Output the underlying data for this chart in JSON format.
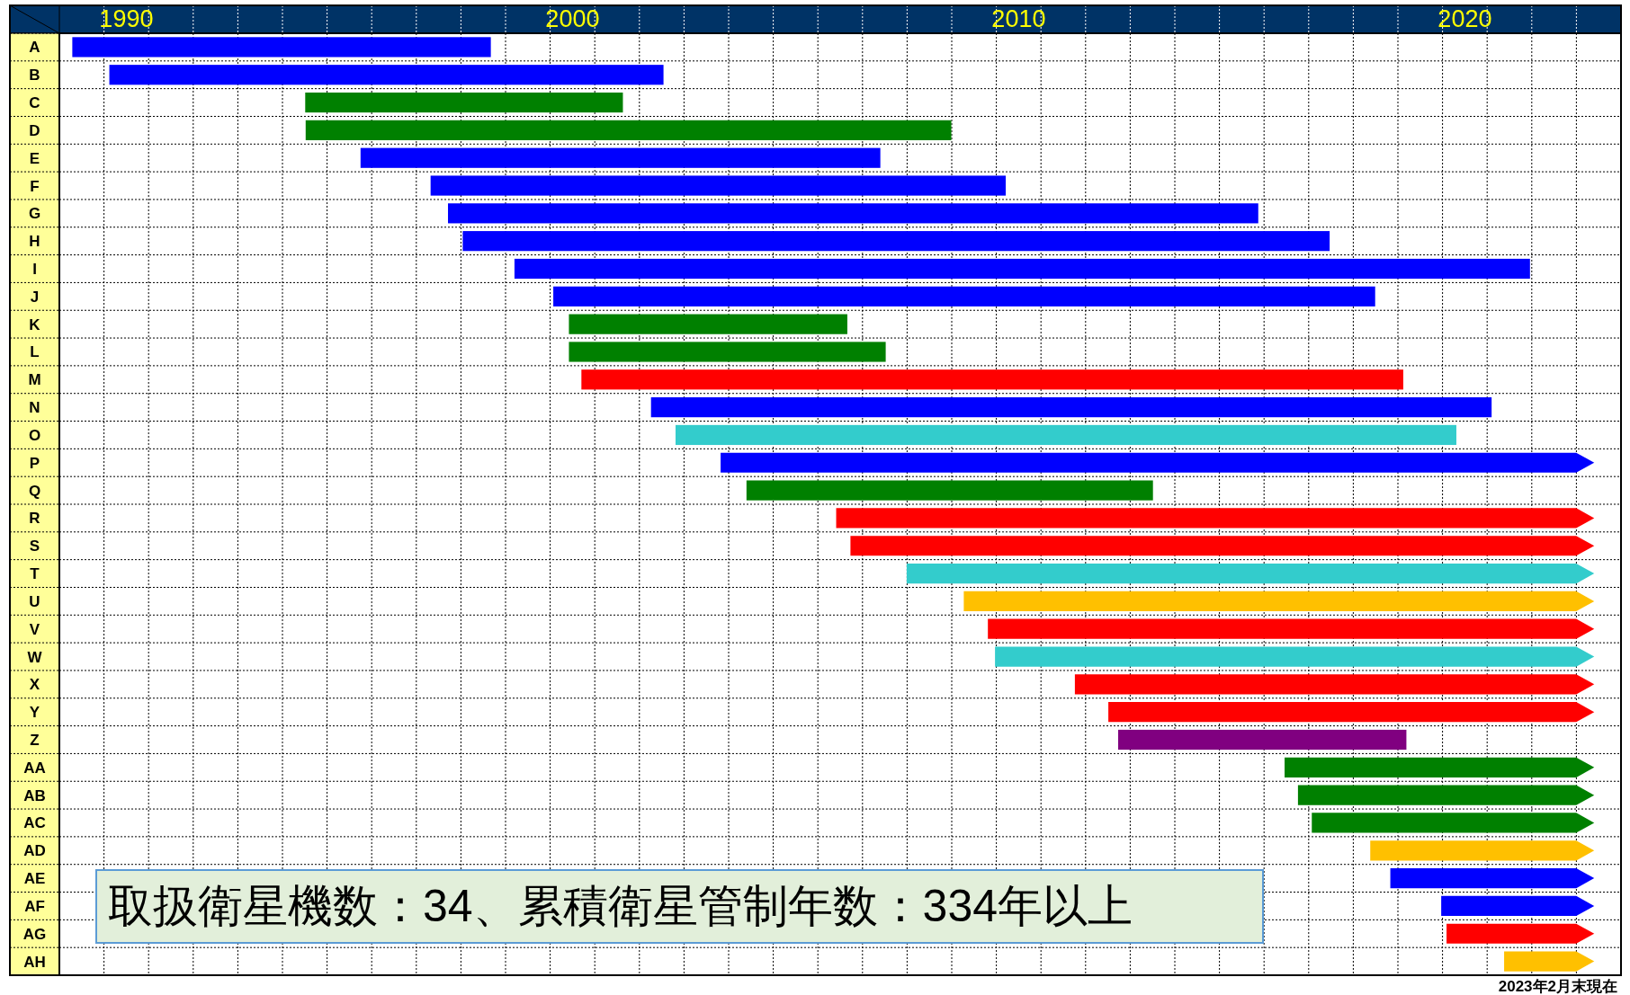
{
  "chart_data": {
    "type": "bar",
    "orientation": "horizontal",
    "grid": true,
    "categories": [
      "A",
      "B",
      "C",
      "D",
      "E",
      "F",
      "G",
      "H",
      "I",
      "J",
      "K",
      "L",
      "M",
      "N",
      "O",
      "P",
      "Q",
      "R",
      "S",
      "T",
      "U",
      "V",
      "W",
      "X",
      "Y",
      "Z",
      "AA",
      "AB",
      "AC",
      "AD",
      "AE",
      "AF",
      "AG",
      "AH"
    ],
    "base": [
      1989.29,
      1990.12,
      1994.51,
      1994.52,
      1995.75,
      1997.32,
      1997.71,
      1998.04,
      1999.2,
      2000.07,
      2000.42,
      2000.42,
      2000.7,
      2002.26,
      2002.81,
      2003.82,
      2004.4,
      2006.41,
      2006.73,
      2007.99,
      2009.27,
      2009.81,
      2009.97,
      2011.76,
      2012.51,
      2012.73,
      2016.46,
      2016.76,
      2017.07,
      2018.38,
      2018.83,
      2019.97,
      2020.09,
      2021.38
    ],
    "values": [
      9.38,
      12.42,
      7.12,
      14.47,
      11.65,
      12.89,
      18.16,
      19.43,
      22.76,
      18.42,
      6.24,
      7.1,
      18.42,
      18.84,
      17.5,
      19.58,
      9.11,
      16.99,
      16.67,
      15.41,
      14.13,
      13.59,
      13.43,
      11.64,
      10.89,
      6.46,
      6.94,
      6.64,
      6.33,
      5.02,
      4.57,
      3.43,
      3.31,
      2.02
    ],
    "colors": [
      "#0000ff",
      "#0000ff",
      "#008000",
      "#008000",
      "#0000ff",
      "#0000ff",
      "#0000ff",
      "#0000ff",
      "#0000ff",
      "#0000ff",
      "#008000",
      "#008000",
      "#ff0000",
      "#0000ff",
      "#33cccc",
      "#0000ff",
      "#008000",
      "#ff0000",
      "#ff0000",
      "#33cccc",
      "#ffc000",
      "#ff0000",
      "#33cccc",
      "#ff0000",
      "#ff0000",
      "#800080",
      "#008000",
      "#008000",
      "#008000",
      "#ffc000",
      "#0000ff",
      "#0000ff",
      "#ff0000",
      "#ffc000"
    ],
    "xlim": [
      1989,
      2024
    ],
    "xticks": [
      {
        "value": 1990.5,
        "label": "1990"
      },
      {
        "value": 2000.5,
        "label": "2000"
      },
      {
        "value": 2010.5,
        "label": "2010"
      },
      {
        "value": 2020.5,
        "label": "2020"
      },
      {
        "value": 1990,
        "label": null
      },
      {
        "value": 1991,
        "label": null
      },
      {
        "value": 1992,
        "label": null
      },
      {
        "value": 1993,
        "label": null
      },
      {
        "value": 1994,
        "label": null
      },
      {
        "value": 1995,
        "label": null
      },
      {
        "value": 1996,
        "label": null
      },
      {
        "value": 1997,
        "label": null
      },
      {
        "value": 1998,
        "label": null
      },
      {
        "value": 1999,
        "label": null
      },
      {
        "value": 2000,
        "label": null
      },
      {
        "value": 2001,
        "label": null
      },
      {
        "value": 2002,
        "label": null
      },
      {
        "value": 2003,
        "label": null
      },
      {
        "value": 2004,
        "label": null
      },
      {
        "value": 2005,
        "label": null
      },
      {
        "value": 2006,
        "label": null
      },
      {
        "value": 2007,
        "label": null
      },
      {
        "value": 2008,
        "label": null
      },
      {
        "value": 2009,
        "label": null
      },
      {
        "value": 2010,
        "label": null
      },
      {
        "value": 2011,
        "label": null
      },
      {
        "value": 2012,
        "label": null
      },
      {
        "value": 2013,
        "label": null
      },
      {
        "value": 2014,
        "label": null
      },
      {
        "value": 2015,
        "label": null
      },
      {
        "value": 2016,
        "label": null
      },
      {
        "value": 2017,
        "label": null
      },
      {
        "value": 2018,
        "label": null
      },
      {
        "value": 2019,
        "label": null
      },
      {
        "value": 2020,
        "label": null
      },
      {
        "value": 2021,
        "label": null
      },
      {
        "value": 2022,
        "label": null
      },
      {
        "value": 2023,
        "label": null
      }
    ],
    "annotations": [
      "取扱衛星機数：34、累積衛星管制年数：334年以上",
      "2023年2月末現在"
    ]
  }
}
